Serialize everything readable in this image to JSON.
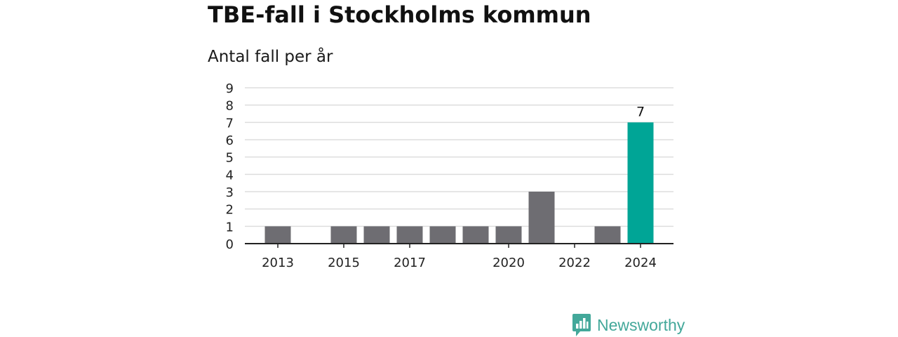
{
  "title": "TBE-fall i Stockholms kommun",
  "subtitle": "Antal fall per år",
  "brand": {
    "name": "Newsworthy",
    "icon": "newsworthy-logo-icon",
    "color": "#43a89a"
  },
  "colors": {
    "bar": "#6e6d72",
    "highlight": "#00a596",
    "grid": "#dddddd",
    "axis": "#222222"
  },
  "chart_data": {
    "type": "bar",
    "x": [
      2013,
      2014,
      2015,
      2016,
      2017,
      2018,
      2019,
      2020,
      2021,
      2022,
      2023,
      2024
    ],
    "values": [
      1,
      0,
      1,
      1,
      1,
      1,
      1,
      1,
      3,
      0,
      1,
      7
    ],
    "x_tick_labels": [
      "2013",
      "2015",
      "2017",
      "2020",
      "2022",
      "2024"
    ],
    "y_ticks": [
      0,
      1,
      2,
      3,
      4,
      5,
      6,
      7,
      8,
      9
    ],
    "ylim": [
      0,
      9
    ],
    "highlight_category": 2024,
    "data_labels": [
      {
        "x": 2024,
        "label": "7"
      }
    ],
    "grid": true,
    "xlabel": "",
    "ylabel": ""
  }
}
